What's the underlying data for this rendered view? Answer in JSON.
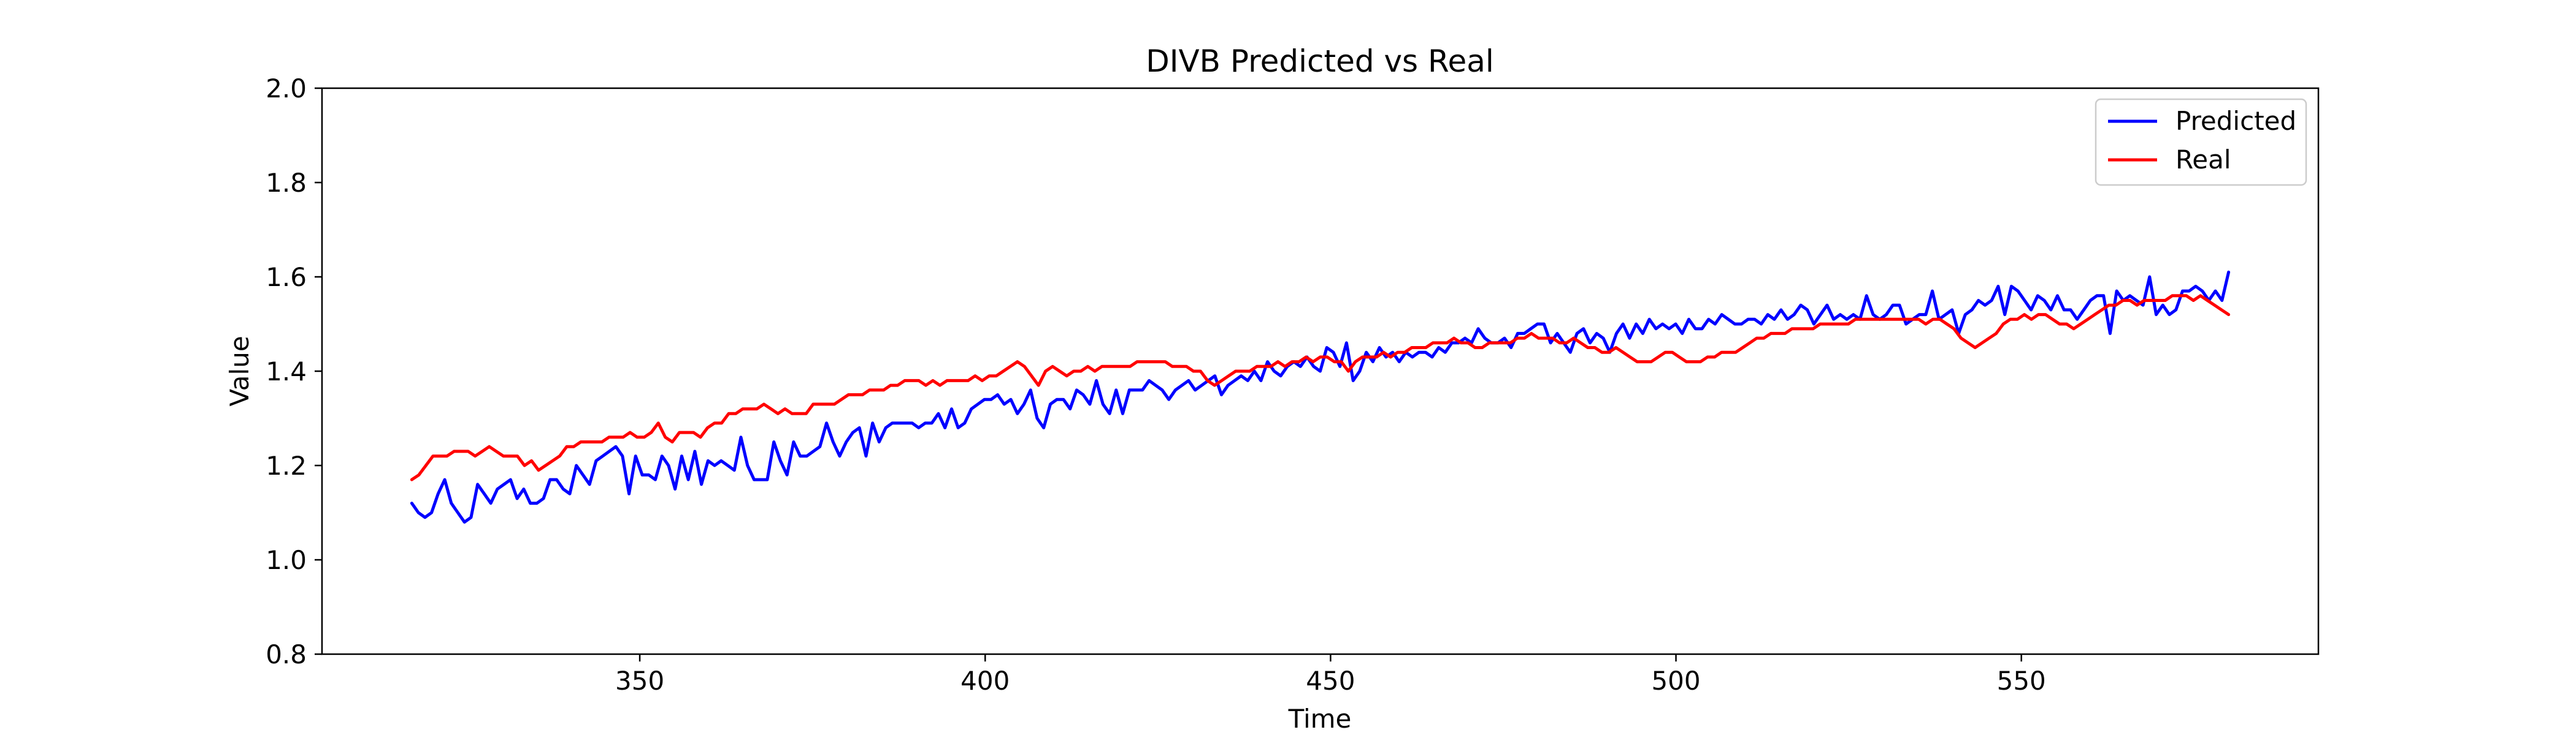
{
  "chart_data": {
    "type": "line",
    "title": "DIVB Predicted vs Real",
    "xlabel": "Time",
    "ylabel": "Value",
    "xlim": [
      304,
      593
    ],
    "ylim": [
      0.8,
      2.0
    ],
    "x_ticks": [
      350,
      400,
      450,
      500,
      550
    ],
    "y_ticks": [
      0.8,
      1.0,
      1.2,
      1.4,
      1.6,
      1.8,
      2.0
    ],
    "x_tick_labels": [
      "350",
      "400",
      "450",
      "500",
      "550"
    ],
    "y_tick_labels": [
      "0.8",
      "1.0",
      "1.2",
      "1.4",
      "1.6",
      "1.8",
      "2.0"
    ],
    "grid": false,
    "legend_position": "top-right",
    "x_start": 317,
    "x_end": 580,
    "series": [
      {
        "name": "Predicted",
        "color": "#0000ff",
        "values": [
          1.12,
          1.1,
          1.09,
          1.1,
          1.14,
          1.17,
          1.12,
          1.1,
          1.08,
          1.09,
          1.16,
          1.14,
          1.12,
          1.15,
          1.16,
          1.17,
          1.13,
          1.15,
          1.12,
          1.12,
          1.13,
          1.17,
          1.17,
          1.15,
          1.14,
          1.2,
          1.18,
          1.16,
          1.21,
          1.22,
          1.23,
          1.24,
          1.22,
          1.14,
          1.22,
          1.18,
          1.18,
          1.17,
          1.22,
          1.2,
          1.15,
          1.22,
          1.17,
          1.23,
          1.16,
          1.21,
          1.2,
          1.21,
          1.2,
          1.19,
          1.26,
          1.2,
          1.17,
          1.17,
          1.17,
          1.25,
          1.21,
          1.18,
          1.25,
          1.22,
          1.22,
          1.23,
          1.24,
          1.29,
          1.25,
          1.22,
          1.25,
          1.27,
          1.28,
          1.22,
          1.29,
          1.25,
          1.28,
          1.29,
          1.29,
          1.29,
          1.29,
          1.28,
          1.29,
          1.29,
          1.31,
          1.28,
          1.32,
          1.28,
          1.29,
          1.32,
          1.33,
          1.34,
          1.34,
          1.35,
          1.33,
          1.34,
          1.31,
          1.33,
          1.36,
          1.3,
          1.28,
          1.33,
          1.34,
          1.34,
          1.32,
          1.36,
          1.35,
          1.33,
          1.38,
          1.33,
          1.31,
          1.36,
          1.31,
          1.36,
          1.36,
          1.36,
          1.38,
          1.37,
          1.36,
          1.34,
          1.36,
          1.37,
          1.38,
          1.36,
          1.37,
          1.38,
          1.39,
          1.35,
          1.37,
          1.38,
          1.39,
          1.38,
          1.4,
          1.38,
          1.42,
          1.4,
          1.39,
          1.41,
          1.42,
          1.41,
          1.43,
          1.41,
          1.4,
          1.45,
          1.44,
          1.41,
          1.46,
          1.38,
          1.4,
          1.44,
          1.42,
          1.45,
          1.43,
          1.44,
          1.42,
          1.44,
          1.43,
          1.44,
          1.44,
          1.43,
          1.45,
          1.44,
          1.46,
          1.46,
          1.47,
          1.46,
          1.49,
          1.47,
          1.46,
          1.46,
          1.47,
          1.45,
          1.48,
          1.48,
          1.49,
          1.5,
          1.5,
          1.46,
          1.48,
          1.46,
          1.44,
          1.48,
          1.49,
          1.46,
          1.48,
          1.47,
          1.44,
          1.48,
          1.5,
          1.47,
          1.5,
          1.48,
          1.51,
          1.49,
          1.5,
          1.49,
          1.5,
          1.48,
          1.51,
          1.49,
          1.49,
          1.51,
          1.5,
          1.52,
          1.51,
          1.5,
          1.5,
          1.51,
          1.51,
          1.5,
          1.52,
          1.51,
          1.53,
          1.51,
          1.52,
          1.54,
          1.53,
          1.5,
          1.52,
          1.54,
          1.51,
          1.52,
          1.51,
          1.52,
          1.51,
          1.56,
          1.52,
          1.51,
          1.52,
          1.54,
          1.54,
          1.5,
          1.51,
          1.52,
          1.52,
          1.57,
          1.51,
          1.52,
          1.53,
          1.48,
          1.52,
          1.53,
          1.55,
          1.54,
          1.55,
          1.58,
          1.52,
          1.58,
          1.57,
          1.55,
          1.53,
          1.56,
          1.55,
          1.53,
          1.56,
          1.53,
          1.53,
          1.51,
          1.53,
          1.55,
          1.56,
          1.56,
          1.48,
          1.57,
          1.55,
          1.56,
          1.55,
          1.54,
          1.6,
          1.52,
          1.54,
          1.52,
          1.53,
          1.57,
          1.57,
          1.58,
          1.57,
          1.55,
          1.57,
          1.55,
          1.61
        ]
      },
      {
        "name": "Real",
        "color": "#ff0000",
        "values": [
          1.17,
          1.18,
          1.2,
          1.22,
          1.22,
          1.22,
          1.23,
          1.23,
          1.23,
          1.22,
          1.23,
          1.24,
          1.23,
          1.22,
          1.22,
          1.22,
          1.2,
          1.21,
          1.19,
          1.2,
          1.21,
          1.22,
          1.24,
          1.24,
          1.25,
          1.25,
          1.25,
          1.25,
          1.26,
          1.26,
          1.26,
          1.27,
          1.26,
          1.26,
          1.27,
          1.29,
          1.26,
          1.25,
          1.27,
          1.27,
          1.27,
          1.26,
          1.28,
          1.29,
          1.29,
          1.31,
          1.31,
          1.32,
          1.32,
          1.32,
          1.33,
          1.32,
          1.31,
          1.32,
          1.31,
          1.31,
          1.31,
          1.33,
          1.33,
          1.33,
          1.33,
          1.34,
          1.35,
          1.35,
          1.35,
          1.36,
          1.36,
          1.36,
          1.37,
          1.37,
          1.38,
          1.38,
          1.38,
          1.37,
          1.38,
          1.37,
          1.38,
          1.38,
          1.38,
          1.38,
          1.39,
          1.38,
          1.39,
          1.39,
          1.4,
          1.41,
          1.42,
          1.41,
          1.39,
          1.37,
          1.4,
          1.41,
          1.4,
          1.39,
          1.4,
          1.4,
          1.41,
          1.4,
          1.41,
          1.41,
          1.41,
          1.41,
          1.41,
          1.42,
          1.42,
          1.42,
          1.42,
          1.42,
          1.41,
          1.41,
          1.41,
          1.4,
          1.4,
          1.38,
          1.37,
          1.38,
          1.39,
          1.4,
          1.4,
          1.4,
          1.41,
          1.41,
          1.41,
          1.42,
          1.41,
          1.42,
          1.42,
          1.43,
          1.42,
          1.43,
          1.43,
          1.42,
          1.42,
          1.4,
          1.42,
          1.43,
          1.43,
          1.43,
          1.44,
          1.43,
          1.44,
          1.44,
          1.45,
          1.45,
          1.45,
          1.46,
          1.46,
          1.46,
          1.47,
          1.46,
          1.46,
          1.45,
          1.45,
          1.46,
          1.46,
          1.46,
          1.46,
          1.47,
          1.47,
          1.48,
          1.47,
          1.47,
          1.47,
          1.46,
          1.46,
          1.47,
          1.46,
          1.45,
          1.45,
          1.44,
          1.44,
          1.45,
          1.44,
          1.43,
          1.42,
          1.42,
          1.42,
          1.43,
          1.44,
          1.44,
          1.43,
          1.42,
          1.42,
          1.42,
          1.43,
          1.43,
          1.44,
          1.44,
          1.44,
          1.45,
          1.46,
          1.47,
          1.47,
          1.48,
          1.48,
          1.48,
          1.49,
          1.49,
          1.49,
          1.49,
          1.5,
          1.5,
          1.5,
          1.5,
          1.5,
          1.51,
          1.51,
          1.51,
          1.51,
          1.51,
          1.51,
          1.51,
          1.51,
          1.51,
          1.51,
          1.5,
          1.51,
          1.51,
          1.5,
          1.49,
          1.47,
          1.46,
          1.45,
          1.46,
          1.47,
          1.48,
          1.5,
          1.51,
          1.51,
          1.52,
          1.51,
          1.52,
          1.52,
          1.51,
          1.5,
          1.5,
          1.49,
          1.5,
          1.51,
          1.52,
          1.53,
          1.54,
          1.54,
          1.55,
          1.55,
          1.54,
          1.55,
          1.55,
          1.55,
          1.55,
          1.56,
          1.56,
          1.56,
          1.55,
          1.56,
          1.55,
          1.54,
          1.53,
          1.52
        ]
      }
    ]
  }
}
